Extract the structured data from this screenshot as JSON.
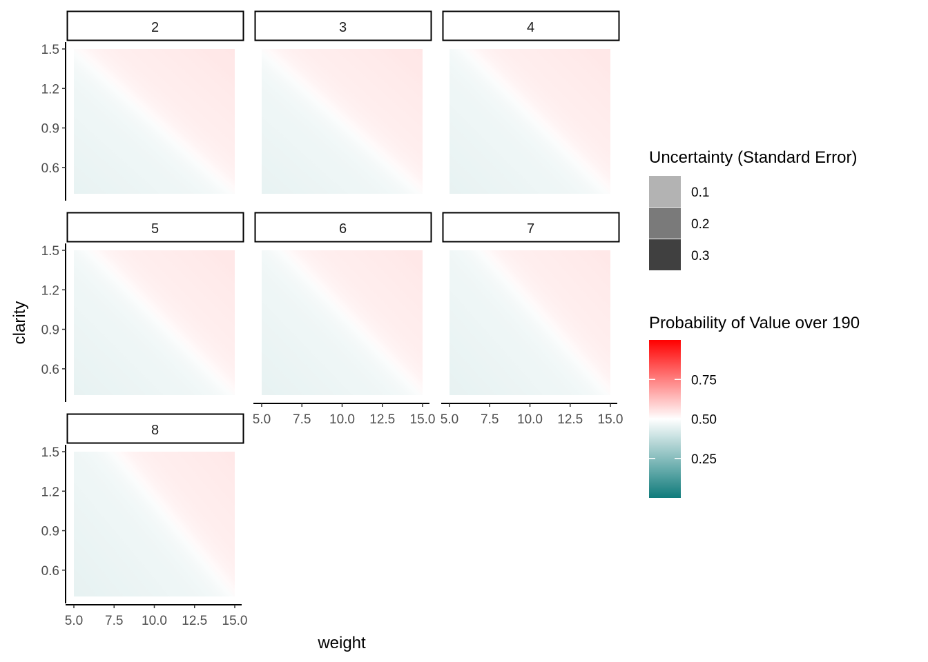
{
  "chart_data": {
    "type": "heatmap",
    "facet_variable_values": [
      "2",
      "3",
      "4",
      "5",
      "6",
      "7",
      "8"
    ],
    "xlabel": "weight",
    "ylabel": "clarity",
    "x_ticks": [
      5.0,
      7.5,
      10.0,
      12.5,
      15.0
    ],
    "x_tick_labels": [
      "5.0",
      "7.5",
      "10.0",
      "12.5",
      "15.0"
    ],
    "y_ticks": [
      0.6,
      0.9,
      1.2,
      1.5
    ],
    "y_tick_labels": [
      "0.6",
      "0.9",
      "1.2",
      "1.5"
    ],
    "xlim": [
      5,
      15
    ],
    "ylim": [
      0.4,
      1.5
    ],
    "grid": false,
    "legend_position": "right",
    "fill_scale": {
      "title": "Probability of Value over 190",
      "breaks": [
        0.25,
        0.5,
        0.75
      ],
      "break_labels": [
        "0.25",
        "0.50",
        "0.75"
      ],
      "limits": [
        0.0,
        1.0
      ],
      "colors": {
        "low": "#0f7b7b",
        "mid": "#ffffff",
        "high": "#ff0000"
      }
    },
    "alpha_scale": {
      "title": "Uncertainty (Standard Error)",
      "breaks": [
        0.1,
        0.2,
        0.3
      ],
      "break_labels": [
        "0.1",
        "0.2",
        "0.3"
      ],
      "swatch_colors": [
        "#b3b3b3",
        "#7a7a7a",
        "#404040"
      ]
    },
    "model": {
      "description_of_surface": "probability surface over weight x clarity; boundary (p=0.5) runs diagonally",
      "panels": [
        {
          "facet": "2",
          "boundary_weight_at_clarity_1_5": 5.0,
          "boundary_weight_at_clarity_0_4": 15.0
        },
        {
          "facet": "3",
          "boundary_weight_at_clarity_1_5": 5.0,
          "boundary_weight_at_clarity_0_4": 15.0
        },
        {
          "facet": "4",
          "boundary_weight_at_clarity_1_5": 6.0,
          "boundary_weight_at_clarity_0_4": 15.0
        },
        {
          "facet": "5",
          "boundary_weight_at_clarity_1_5": 6.0,
          "boundary_weight_at_clarity_0_4": 15.0
        },
        {
          "facet": "6",
          "boundary_weight_at_clarity_1_5": 6.3,
          "boundary_weight_at_clarity_0_4": 15.0
        },
        {
          "facet": "7",
          "boundary_weight_at_clarity_1_5": 7.0,
          "boundary_weight_at_clarity_0_4": 15.0
        },
        {
          "facet": "8",
          "boundary_weight_at_clarity_1_5": 7.5,
          "boundary_weight_at_clarity_0_4": 15.0
        }
      ]
    }
  }
}
